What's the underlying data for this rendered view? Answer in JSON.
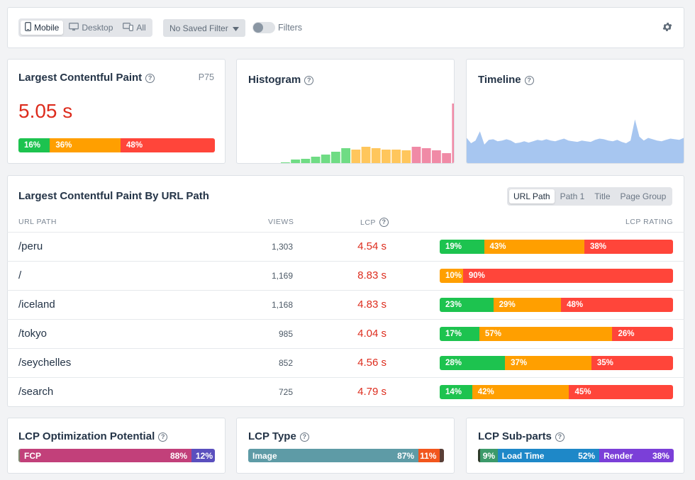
{
  "toolbar": {
    "device_tabs": [
      {
        "label": "Mobile",
        "icon": "mobile-icon",
        "active": true
      },
      {
        "label": "Desktop",
        "icon": "desktop-icon",
        "active": false
      },
      {
        "label": "All",
        "icon": "devices-icon",
        "active": false
      }
    ],
    "saved_filter_label": "No Saved Filter",
    "filters_label": "Filters",
    "filters_enabled": false,
    "settings_icon": "gear-icon"
  },
  "lcp_card": {
    "title": "Largest Contentful Paint",
    "percentile": "P75",
    "value": "5.05 s",
    "good": "16%",
    "mid": "36%",
    "poor": "48%",
    "good_frac": 0.16,
    "mid_frac": 0.36,
    "poor_frac": 0.48
  },
  "histogram": {
    "title": "Histogram",
    "bars": [
      {
        "v": 1,
        "c": "good"
      },
      {
        "v": 5,
        "c": "good"
      },
      {
        "v": 6,
        "c": "good"
      },
      {
        "v": 9,
        "c": "good"
      },
      {
        "v": 12,
        "c": "good"
      },
      {
        "v": 16,
        "c": "good"
      },
      {
        "v": 21,
        "c": "good"
      },
      {
        "v": 19,
        "c": "mid"
      },
      {
        "v": 23,
        "c": "mid"
      },
      {
        "v": 21,
        "c": "mid"
      },
      {
        "v": 19,
        "c": "mid"
      },
      {
        "v": 19,
        "c": "mid"
      },
      {
        "v": 18,
        "c": "mid"
      },
      {
        "v": 23,
        "c": "poor"
      },
      {
        "v": 21,
        "c": "poor"
      },
      {
        "v": 18,
        "c": "poor"
      },
      {
        "v": 14,
        "c": "poor"
      },
      {
        "v": 84,
        "c": "poor"
      }
    ]
  },
  "timeline": {
    "title": "Timeline",
    "series": [
      38,
      30,
      34,
      48,
      28,
      35,
      36,
      33,
      34,
      36,
      34,
      30,
      31,
      33,
      31,
      33,
      35,
      34,
      36,
      34,
      33,
      35,
      37,
      34,
      33,
      32,
      34,
      33,
      32,
      35,
      37,
      36,
      34,
      33,
      35,
      32,
      30,
      34,
      66,
      40,
      34,
      38,
      36,
      34,
      33,
      35,
      37,
      36,
      35,
      38
    ]
  },
  "table": {
    "title": "Largest Contentful Paint By URL Path",
    "tabs": [
      {
        "label": "URL Path",
        "active": true
      },
      {
        "label": "Path 1",
        "active": false
      },
      {
        "label": "Title",
        "active": false
      },
      {
        "label": "Page Group",
        "active": false
      }
    ],
    "columns": {
      "path": "URL PATH",
      "views": "VIEWS",
      "lcp": "LCP",
      "rating": "LCP RATING"
    },
    "rows": [
      {
        "path": "/peru",
        "views": "1,303",
        "lcp": "4.54 s",
        "good": "19%",
        "mid": "43%",
        "poor": "38%",
        "gf": 0.19,
        "mf": 0.43,
        "pf": 0.38
      },
      {
        "path": "/",
        "views": "1,169",
        "lcp": "8.83 s",
        "good": "",
        "mid": "10%",
        "poor": "90%",
        "gf": 0.0,
        "mf": 0.1,
        "pf": 0.9
      },
      {
        "path": "/iceland",
        "views": "1,168",
        "lcp": "4.83 s",
        "good": "23%",
        "mid": "29%",
        "poor": "48%",
        "gf": 0.23,
        "mf": 0.29,
        "pf": 0.48
      },
      {
        "path": "/tokyo",
        "views": "985",
        "lcp": "4.04 s",
        "good": "17%",
        "mid": "57%",
        "poor": "26%",
        "gf": 0.17,
        "mf": 0.57,
        "pf": 0.26
      },
      {
        "path": "/seychelles",
        "views": "852",
        "lcp": "4.56 s",
        "good": "28%",
        "mid": "37%",
        "poor": "35%",
        "gf": 0.28,
        "mf": 0.37,
        "pf": 0.35
      },
      {
        "path": "/search",
        "views": "725",
        "lcp": "4.79 s",
        "good": "14%",
        "mid": "42%",
        "poor": "45%",
        "gf": 0.14,
        "mf": 0.42,
        "pf": 0.45
      }
    ]
  },
  "optimization": {
    "title": "LCP Optimization Potential",
    "fcp_label": "FCP",
    "fcp_pct": "88%",
    "rest_pct": "12%",
    "fcp_frac": 0.88,
    "rest_frac": 0.12
  },
  "lcp_type": {
    "title": "LCP Type",
    "image_label": "Image",
    "image_pct": "87%",
    "other_pct": "11%",
    "image_frac": 0.87,
    "other_frac": 0.11,
    "rest_frac": 0.02
  },
  "subparts": {
    "title": "LCP Sub-parts",
    "first_pct": "9%",
    "load_label": "Load Time",
    "load_pct": "52%",
    "render_label": "Render",
    "render_pct": "38%",
    "first_frac": 0.09,
    "load_frac": 0.52,
    "render_frac": 0.38,
    "rest_frac": 0.01
  },
  "colors": {
    "good": "#1dc34f",
    "mid": "#ff9f00",
    "poor": "#ff453a",
    "lcp_value": "#dd2c1d",
    "timeline_fill": "#a7c6f0",
    "hist_good": "#6fdc84",
    "hist_mid": "#ffc65c",
    "hist_poor": "#f08aa6"
  }
}
